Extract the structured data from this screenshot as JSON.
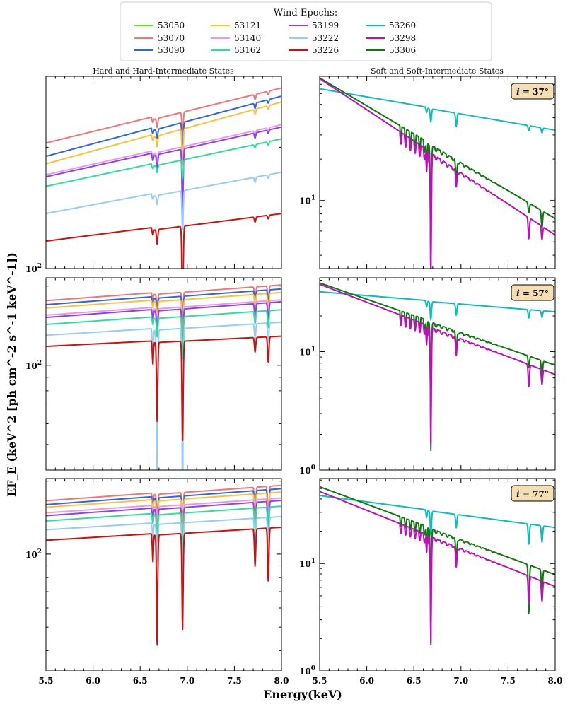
{
  "chart_data": {
    "type": "line",
    "legend": {
      "title": "Wind Epochs:",
      "entries": [
        {
          "label": "53050",
          "color": "#66dd33"
        },
        {
          "label": "53070",
          "color": "#ee7777"
        },
        {
          "label": "53090",
          "color": "#3366dd"
        },
        {
          "label": "53121",
          "color": "#f5c242"
        },
        {
          "label": "53140",
          "color": "#ee99dd"
        },
        {
          "label": "53162",
          "color": "#33dd99"
        },
        {
          "label": "53199",
          "color": "#8844ee"
        },
        {
          "label": "53222",
          "color": "#99ccf5"
        },
        {
          "label": "53226",
          "color": "#cc1111"
        },
        {
          "label": "53260",
          "color": "#11bbbb"
        },
        {
          "label": "53298",
          "color": "#bb11bb"
        },
        {
          "label": "53306",
          "color": "#117711"
        }
      ]
    },
    "column_titles": [
      "Hard and Hard-Intermediate States",
      "Soft and Soft-Intermediate States"
    ],
    "xlabel": "Energy(keV)",
    "ylabel": "EF_E (keV^2 [ph cm^-2 s^-1 keV^-1])",
    "xlim": [
      5.5,
      8.0
    ],
    "xticks": [
      "5.5",
      "6.0",
      "6.5",
      "7.0",
      "7.5",
      "8.0"
    ],
    "ytick_100": "10",
    "ytick_100_exp": "2",
    "ytick_10": "10",
    "ytick_10_exp": "1",
    "ytick_1": "10",
    "ytick_1_exp": "0",
    "annotations": {
      "i37": {
        "lhs": "i",
        "rhs": " = 37°"
      },
      "i57": {
        "lhs": "i",
        "rhs": " = 57°"
      },
      "i77": {
        "lhs": "i",
        "rhs": " = 77°"
      }
    },
    "panels": [
      {
        "id": "hard-37",
        "yscale": "log",
        "ylim": [
          100,
          300
        ],
        "yticks": [
          100
        ],
        "series": [
          {
            "name": "53070",
            "start": 205,
            "end": 285,
            "depth": [
              0.05,
              0.12,
              0.03,
              0.02
            ]
          },
          {
            "name": "53090",
            "start": 190,
            "end": 272,
            "depth": [
              0.05,
              0.15,
              0.03,
              0.02
            ]
          },
          {
            "name": "53121",
            "start": 182,
            "end": 263,
            "depth": [
              0.06,
              0.18,
              0.03,
              0.02
            ]
          },
          {
            "name": "53140",
            "start": 171,
            "end": 231,
            "depth": [
              0.04,
              0.1,
              0.02,
              0.02
            ]
          },
          {
            "name": "53199",
            "start": 169,
            "end": 228,
            "depth": [
              0.08,
              0.3,
              0.03,
              0.02
            ]
          },
          {
            "name": "53162",
            "start": 160,
            "end": 213,
            "depth": [
              0.04,
              0.1,
              0.02,
              0.02
            ]
          },
          {
            "name": "53222",
            "start": 137,
            "end": 176,
            "depth": [
              0.05,
              0.2,
              0.03,
              0.02
            ]
          },
          {
            "name": "53226",
            "start": 117,
            "end": 139,
            "depth": [
              0.08,
              0.4,
              0.03,
              0.02
            ]
          }
        ]
      },
      {
        "id": "hard-57",
        "yscale": "log",
        "ylim": [
          40,
          215
        ],
        "yticks": [
          100
        ],
        "series": [
          {
            "name": "53070",
            "start": 176,
            "end": 205,
            "depth": [
              0.1,
              0.2,
              0.1,
              0.12
            ]
          },
          {
            "name": "53090",
            "start": 170,
            "end": 198,
            "depth": [
              0.12,
              0.25,
              0.1,
              0.12
            ]
          },
          {
            "name": "53121",
            "start": 165,
            "end": 192,
            "depth": [
              0.15,
              0.3,
              0.1,
              0.14
            ]
          },
          {
            "name": "53140",
            "start": 155,
            "end": 180,
            "depth": [
              0.12,
              0.3,
              0.1,
              0.14
            ]
          },
          {
            "name": "53199",
            "start": 152,
            "end": 177,
            "depth": [
              0.2,
              0.35,
              0.12,
              0.15
            ]
          },
          {
            "name": "53162",
            "start": 143,
            "end": 165,
            "depth": [
              0.15,
              0.3,
              0.1,
              0.14
            ]
          },
          {
            "name": "53222",
            "start": 130,
            "end": 148,
            "depth": [
              0.72,
              0.8,
              0.12,
              0.15
            ]
          },
          {
            "name": "53226",
            "start": 118,
            "end": 131,
            "depth": [
              0.5,
              0.58,
              0.12,
              0.2
            ]
          }
        ]
      },
      {
        "id": "hard-77",
        "yscale": "log",
        "ylim": [
          33,
          205
        ],
        "yticks": [
          100
        ],
        "series": [
          {
            "name": "53070",
            "start": 166,
            "end": 195,
            "depth": [
              0.2,
              0.3,
              0.25,
              0.3
            ]
          },
          {
            "name": "53090",
            "start": 160,
            "end": 189,
            "depth": [
              0.3,
              0.4,
              0.3,
              0.32
            ]
          },
          {
            "name": "53121",
            "start": 156,
            "end": 183,
            "depth": [
              0.25,
              0.35,
              0.25,
              0.3
            ]
          },
          {
            "name": "53140",
            "start": 148,
            "end": 173,
            "depth": [
              0.25,
              0.35,
              0.25,
              0.3
            ]
          },
          {
            "name": "53199",
            "start": 144,
            "end": 169,
            "depth": [
              0.35,
              0.45,
              0.3,
              0.32
            ]
          },
          {
            "name": "53162",
            "start": 137,
            "end": 160,
            "depth": [
              0.2,
              0.3,
              0.22,
              0.28
            ]
          },
          {
            "name": "53222",
            "start": 126,
            "end": 145,
            "depth": [
              0.3,
              0.4,
              0.25,
              0.3
            ]
          },
          {
            "name": "53226",
            "start": 114,
            "end": 131,
            "depth": [
              0.65,
              0.6,
              0.3,
              0.4
            ]
          }
        ]
      },
      {
        "id": "soft-37",
        "yscale": "log",
        "ylim": [
          3.2,
          80
        ],
        "yticks": [
          10
        ],
        "series": [
          {
            "name": "53260",
            "start": 65,
            "end": 33,
            "depth": [
              0.2,
              0.2,
              0.08,
              0.08
            ]
          },
          {
            "name": "53306",
            "start": 78,
            "end": 7.5,
            "depth": [
              0.9,
              0.3,
              0.15,
              0.25
            ]
          },
          {
            "name": "53298",
            "start": 77,
            "end": 5.7,
            "depth": [
              0.88,
              0.25,
              0.3,
              0.2
            ]
          }
        ]
      },
      {
        "id": "soft-57",
        "yscale": "log",
        "ylim": [
          1.0,
          42
        ],
        "yticks": [
          1,
          10
        ],
        "series": [
          {
            "name": "53260",
            "start": 32,
            "end": 22,
            "depth": [
              0.3,
              0.2,
              0.15,
              0.12
            ]
          },
          {
            "name": "53306",
            "start": 38,
            "end": 7.8,
            "depth": [
              0.92,
              0.35,
              0.2,
              0.3
            ]
          },
          {
            "name": "53298",
            "start": 37,
            "end": 6.5,
            "depth": [
              0.9,
              0.3,
              0.35,
              0.25
            ]
          }
        ]
      },
      {
        "id": "soft-77",
        "yscale": "log",
        "ylim": [
          1.0,
          62
        ],
        "yticks": [
          1,
          10
        ],
        "series": [
          {
            "name": "53260",
            "start": 43,
            "end": 22,
            "depth": [
              0.4,
              0.25,
              0.35,
              0.3
            ]
          },
          {
            "name": "53306",
            "start": 52,
            "end": 8.0,
            "depth": [
              0.92,
              0.4,
              0.65,
              0.45
            ]
          },
          {
            "name": "53298",
            "start": 47,
            "end": 6.2,
            "depth": [
              0.9,
              0.35,
              0.45,
              0.35
            ]
          }
        ]
      }
    ]
  }
}
